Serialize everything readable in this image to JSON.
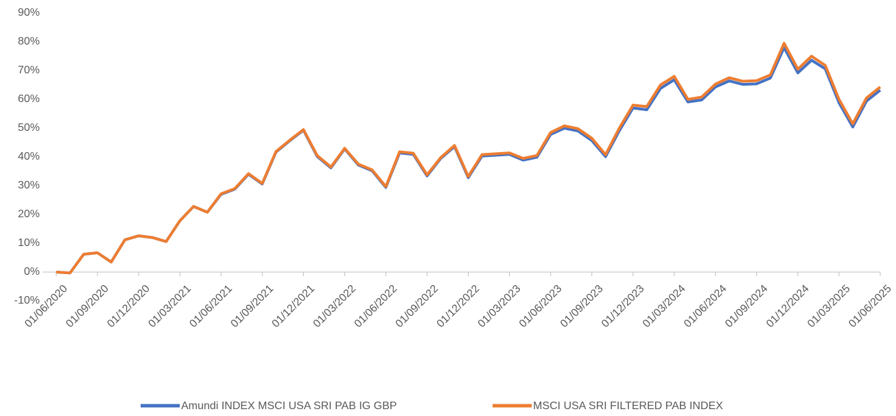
{
  "chart_data": {
    "type": "line",
    "categories": [
      "01/06/2020",
      null,
      null,
      "01/09/2020",
      null,
      null,
      "01/12/2020",
      null,
      null,
      "01/03/2021",
      null,
      null,
      "01/06/2021",
      null,
      null,
      "01/09/2021",
      null,
      null,
      "01/12/2021",
      null,
      null,
      "01/03/2022",
      null,
      null,
      "01/06/2022",
      null,
      null,
      "01/09/2022",
      null,
      null,
      "01/12/2022",
      null,
      null,
      "01/03/2023",
      null,
      null,
      "01/06/2023",
      null,
      null,
      "01/09/2023",
      null,
      null,
      "01/12/2023",
      null,
      null,
      "01/03/2024",
      null,
      null,
      "01/06/2024",
      null,
      null,
      "01/09/2024",
      null,
      null,
      "01/12/2024",
      null,
      null,
      "01/03/2025",
      null,
      null,
      "01/06/2025"
    ],
    "series": [
      {
        "name": "Amundi INDEX MSCI USA SRI PAB IG GBP",
        "color": "#4472c4",
        "values": [
          0,
          -0.3,
          6.2,
          6.7,
          3.5,
          11.2,
          12.6,
          12,
          10.6,
          17.8,
          22.8,
          20.8,
          27,
          28.8,
          34,
          30.6,
          41.7,
          45.6,
          49.3,
          40.2,
          36.2,
          42.8,
          37.2,
          35.2,
          29.4,
          41.4,
          40.9,
          33.4,
          39.5,
          43.6,
          32.8,
          40.3,
          40.6,
          40.9,
          38.9,
          39.9,
          47.8,
          50,
          49,
          45.7,
          40.1,
          49.1,
          57,
          56.4,
          63.8,
          66.8,
          59.1,
          59.8,
          64.3,
          66.4,
          65.2,
          65.4,
          67.4,
          78,
          69.2,
          73.6,
          70.6,
          58.8,
          50.4,
          59.4,
          63.2
        ]
      },
      {
        "name": "MSCI USA SRI FILTERED PAB INDEX",
        "color": "#ed7d31",
        "values": [
          0,
          -0.3,
          6.2,
          6.7,
          3.5,
          11.2,
          12.6,
          12,
          10.6,
          17.8,
          22.8,
          20.8,
          27.2,
          29,
          34.2,
          30.8,
          41.9,
          45.8,
          49.5,
          40.5,
          36.5,
          43,
          37.5,
          35.5,
          29.7,
          41.8,
          41.3,
          33.8,
          39.8,
          44,
          33.2,
          40.8,
          41.1,
          41.4,
          39.5,
          40.5,
          48.5,
          50.8,
          49.8,
          46.5,
          40.8,
          50,
          58,
          57.5,
          65,
          68,
          60,
          60.8,
          65.3,
          67.5,
          66.3,
          66.5,
          68.5,
          79.5,
          70.5,
          75,
          71.8,
          60,
          51.5,
          60.5,
          64.3
        ]
      }
    ],
    "ylim": [
      -10,
      90
    ],
    "yticks": [
      {
        "value": -10,
        "label": "-10%"
      },
      {
        "value": 0,
        "label": "0%"
      },
      {
        "value": 10,
        "label": "10%"
      },
      {
        "value": 20,
        "label": "20%"
      },
      {
        "value": 30,
        "label": "30%"
      },
      {
        "value": 40,
        "label": "40%"
      },
      {
        "value": 50,
        "label": "50%"
      },
      {
        "value": 60,
        "label": "60%"
      },
      {
        "value": 70,
        "label": "70%"
      },
      {
        "value": 80,
        "label": "80%"
      },
      {
        "value": 90,
        "label": "90%"
      }
    ],
    "grid": false,
    "legend": "bottom"
  }
}
